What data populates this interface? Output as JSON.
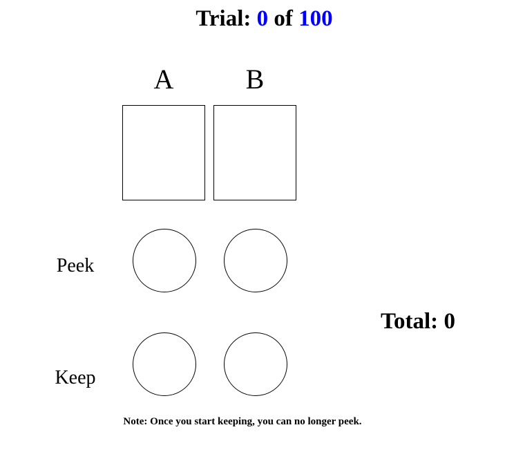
{
  "header": {
    "trial_label": "Trial:",
    "current_trial": "0",
    "of_label": "of",
    "total_trials": "100"
  },
  "columns": {
    "a_label": "A",
    "b_label": "B"
  },
  "rows": {
    "peek_label": "Peek",
    "keep_label": "Keep"
  },
  "score": {
    "total_label": "Total:",
    "total_value": "0"
  },
  "note": "Note: Once you start keeping, you can no longer peek.",
  "colors": {
    "accent": "#0000ff",
    "text": "#000000",
    "background": "#ffffff"
  }
}
